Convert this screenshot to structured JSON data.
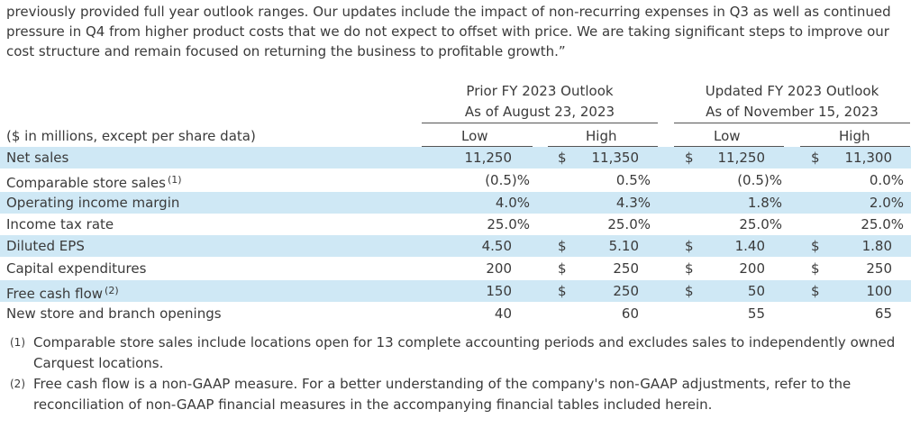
{
  "intro_text": "previously provided full year outlook ranges. Our updates include the impact of non-recurring expenses in Q3 as well as continued pressure in Q4 from higher product costs that we do not expect to offset with price. We are taking significant steps to improve our cost structure and remain focused on returning the business to profitable growth.”",
  "groups": {
    "prior": {
      "line1": "Prior FY 2023 Outlook",
      "line2": "As of August 23, 2023"
    },
    "updated": {
      "line1": "Updated FY 2023 Outlook",
      "line2": "As of November 15, 2023"
    }
  },
  "header": {
    "units_label": "($ in millions, except per share data)",
    "low": "Low",
    "high": "High"
  },
  "currency_symbol": "$",
  "rows": [
    {
      "label": "Net sales",
      "sup": "",
      "v": [
        "11,250",
        "11,350",
        "11,250",
        "11,300"
      ]
    },
    {
      "label": "Comparable store sales",
      "sup": "(1)",
      "v": [
        "(0.5)%",
        "0.5%",
        "(0.5)%",
        "0.0%"
      ]
    },
    {
      "label": "Operating income margin",
      "sup": "",
      "v": [
        "4.0%",
        "4.3%",
        "1.8%",
        "2.0%"
      ]
    },
    {
      "label": "Income tax rate",
      "sup": "",
      "v": [
        "25.0%",
        "25.0%",
        "25.0%",
        "25.0%"
      ]
    },
    {
      "label": "Diluted EPS",
      "sup": "",
      "v": [
        "4.50",
        "5.10",
        "1.40",
        "1.80"
      ]
    },
    {
      "label": "Capital expenditures",
      "sup": "",
      "v": [
        "200",
        "250",
        "200",
        "250"
      ]
    },
    {
      "label": "Free cash flow",
      "sup": "(2)",
      "v": [
        "150",
        "250",
        "50",
        "100"
      ]
    },
    {
      "label": "New store and branch openings",
      "sup": "",
      "v": [
        "40",
        "60",
        "55",
        "65"
      ]
    }
  ],
  "footnotes": [
    {
      "num": "(1)",
      "text": "Comparable store sales include locations open for 13 complete accounting periods and excludes sales to independently owned Carquest locations."
    },
    {
      "num": "(2)",
      "text": "Free cash flow is a non-GAAP measure. For a better understanding of the company's non-GAAP adjustments, refer to the reconciliation of non-GAAP financial measures in the accompanying financial tables included herein."
    }
  ]
}
